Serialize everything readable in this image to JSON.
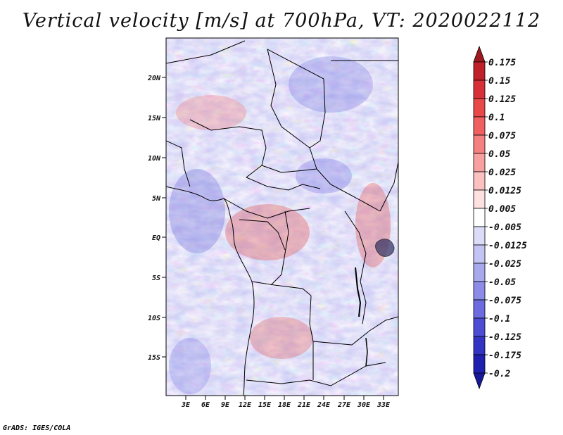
{
  "title": "Vertical velocity [m/s] at 700hPa, VT: 2020022112",
  "credit": "GrADS: IGES/COLA",
  "map": {
    "lat_labels": [
      "20N",
      "15N",
      "10N",
      "5N",
      "EQ",
      "5S",
      "10S",
      "15S"
    ],
    "lon_labels": [
      "3E",
      "6E",
      "9E",
      "12E",
      "15E",
      "18E",
      "21E",
      "24E",
      "27E",
      "30E",
      "33E"
    ]
  },
  "colorbar": {
    "labels": [
      "0.175",
      "0.15",
      "0.125",
      "0.1",
      "0.075",
      "0.05",
      "0.025",
      "0.0125",
      "0.005",
      "-0.005",
      "-0.0125",
      "-0.025",
      "-0.05",
      "-0.075",
      "-0.1",
      "-0.125",
      "-0.175",
      "-0.2"
    ],
    "colors": [
      "#a01820",
      "#c02028",
      "#d83038",
      "#e84848",
      "#f06060",
      "#f48080",
      "#f8a0a0",
      "#fbc0c0",
      "#fde0e0",
      "#ffffff",
      "#dcdcf8",
      "#c4c4f4",
      "#a8a8ee",
      "#8c8ce8",
      "#6c6ce0",
      "#4c4cd4",
      "#3434c4",
      "#2020b0",
      "#18189a"
    ]
  }
}
